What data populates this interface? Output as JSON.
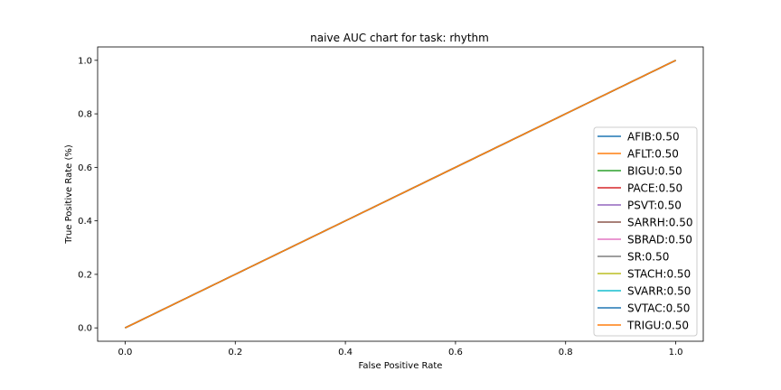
{
  "chart_data": {
    "type": "line",
    "title": "naive AUC chart for task: rhythm",
    "xlabel": "False Positive Rate",
    "ylabel": "True Positive Rate (%)",
    "xlim": [
      -0.05,
      1.05
    ],
    "ylim": [
      -0.05,
      1.05
    ],
    "xticks": [
      0.0,
      0.2,
      0.4,
      0.6,
      0.8,
      1.0
    ],
    "yticks": [
      0.0,
      0.2,
      0.4,
      0.6,
      0.8,
      1.0
    ],
    "xtick_labels": [
      "0.0",
      "0.2",
      "0.4",
      "0.6",
      "0.8",
      "1.0"
    ],
    "ytick_labels": [
      "0.0",
      "0.2",
      "0.4",
      "0.6",
      "0.8",
      "1.0"
    ],
    "grid": false,
    "legend_position": "lower-right",
    "series": [
      {
        "name": "AFIB:0.50",
        "color": "#1f77b4",
        "x": [
          0,
          1
        ],
        "y": [
          0,
          1
        ]
      },
      {
        "name": "AFLT:0.50",
        "color": "#ff7f0e",
        "x": [
          0,
          1
        ],
        "y": [
          0,
          1
        ]
      },
      {
        "name": "BIGU:0.50",
        "color": "#2ca02c",
        "x": [
          0,
          1
        ],
        "y": [
          0,
          1
        ]
      },
      {
        "name": "PACE:0.50",
        "color": "#d62728",
        "x": [
          0,
          1
        ],
        "y": [
          0,
          1
        ]
      },
      {
        "name": "PSVT:0.50",
        "color": "#9467bd",
        "x": [
          0,
          1
        ],
        "y": [
          0,
          1
        ]
      },
      {
        "name": "SARRH:0.50",
        "color": "#8c564b",
        "x": [
          0,
          1
        ],
        "y": [
          0,
          1
        ]
      },
      {
        "name": "SBRAD:0.50",
        "color": "#e377c2",
        "x": [
          0,
          1
        ],
        "y": [
          0,
          1
        ]
      },
      {
        "name": "SR:0.50",
        "color": "#7f7f7f",
        "x": [
          0,
          1
        ],
        "y": [
          0,
          1
        ]
      },
      {
        "name": "STACH:0.50",
        "color": "#bcbd22",
        "x": [
          0,
          1
        ],
        "y": [
          0,
          1
        ]
      },
      {
        "name": "SVARR:0.50",
        "color": "#17becf",
        "x": [
          0,
          1
        ],
        "y": [
          0,
          1
        ]
      },
      {
        "name": "SVTAC:0.50",
        "color": "#1f77b4",
        "x": [
          0,
          1
        ],
        "y": [
          0,
          1
        ]
      },
      {
        "name": "TRIGU:0.50",
        "color": "#ff7f0e",
        "x": [
          0,
          1
        ],
        "y": [
          0,
          1
        ]
      }
    ]
  }
}
